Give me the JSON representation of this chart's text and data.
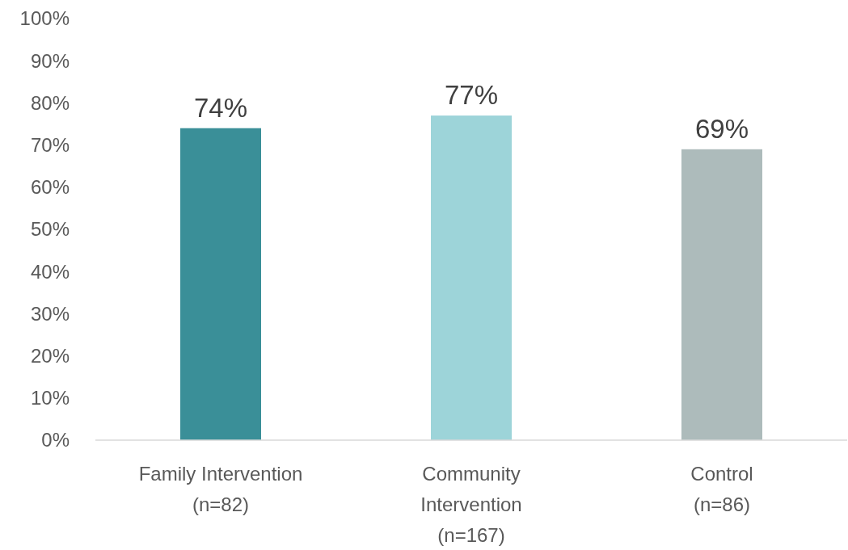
{
  "chart_data": {
    "type": "bar",
    "categories": [
      "Family Intervention\n(n=82)",
      "Community\nIntervention\n(n=167)",
      "Control\n(n=86)"
    ],
    "values": [
      74,
      77,
      69
    ],
    "colors": [
      "#3a8f98",
      "#9dd4d9",
      "#adbbbb"
    ],
    "value_labels": [
      "74%",
      "77%",
      "69%"
    ],
    "ylim": [
      0,
      100
    ],
    "yticks": [
      {
        "value": 0,
        "label": "0%"
      },
      {
        "value": 10,
        "label": "10%"
      },
      {
        "value": 20,
        "label": "20%"
      },
      {
        "value": 30,
        "label": "30%"
      },
      {
        "value": 40,
        "label": "40%"
      },
      {
        "value": 50,
        "label": "50%"
      },
      {
        "value": 60,
        "label": "60%"
      },
      {
        "value": 70,
        "label": "70%"
      },
      {
        "value": 80,
        "label": "80%"
      },
      {
        "value": 90,
        "label": "90%"
      },
      {
        "value": 100,
        "label": "100%"
      }
    ],
    "grid": false
  }
}
